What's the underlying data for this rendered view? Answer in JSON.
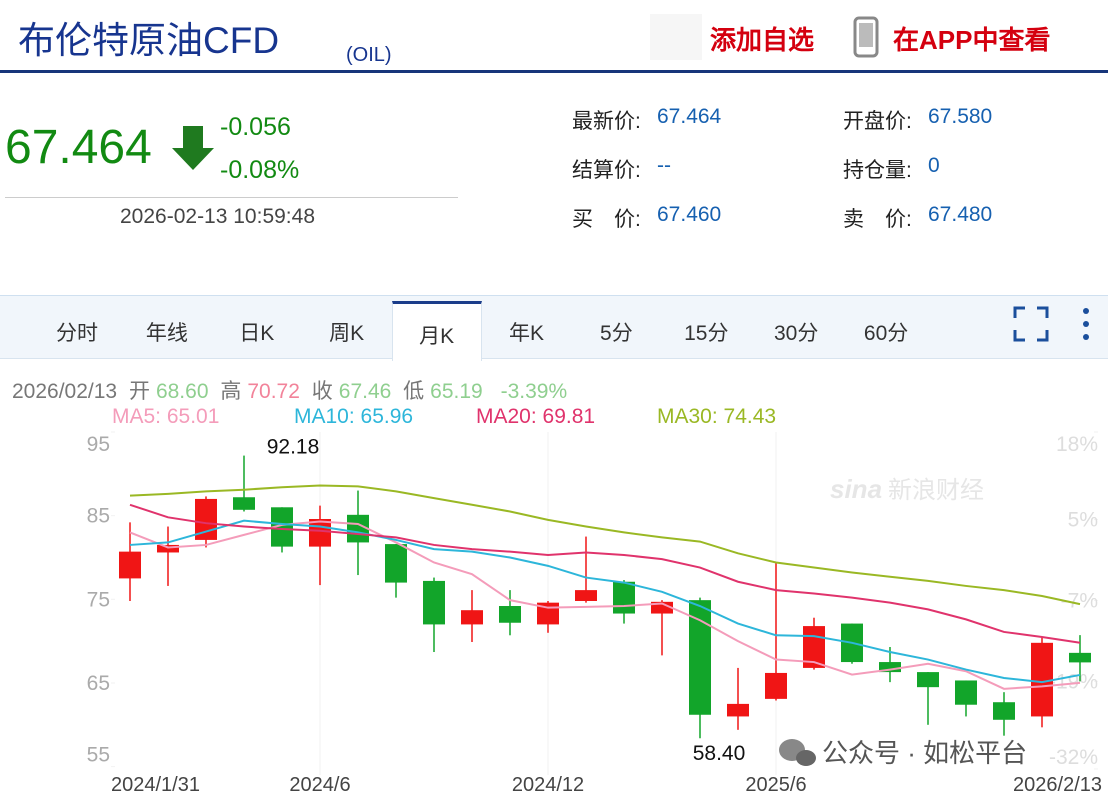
{
  "header": {
    "title": "布伦特原油CFD",
    "code": "(OIL)",
    "add_button": "添加自选",
    "app_button": "在APP中查看"
  },
  "quote": {
    "price": "67.464",
    "change": "-0.056",
    "change_pct": "-0.08%",
    "time": "2026-02-13 10:59:48",
    "fields": [
      {
        "label": "最新价:",
        "value": "67.464"
      },
      {
        "label": "开盘价:",
        "value": "67.580"
      },
      {
        "label": "结算价:",
        "value": "--"
      },
      {
        "label": "持仓量:",
        "value": "0"
      },
      {
        "label": "买　价:",
        "value": "67.460"
      },
      {
        "label": "卖　价:",
        "value": "67.480"
      }
    ]
  },
  "tabs": {
    "items": [
      "分时",
      "年线",
      "日K",
      "周K",
      "月K",
      "年K",
      "5分",
      "15分",
      "30分",
      "60分"
    ],
    "active": 4
  },
  "info": {
    "date": "2026/02/13",
    "items": [
      {
        "label": "开",
        "value": "68.60"
      },
      {
        "label": "高",
        "value": "70.72"
      },
      {
        "label": "收",
        "value": "67.46"
      },
      {
        "label": "低",
        "value": "65.19"
      },
      {
        "label": "",
        "value": "-3.39%"
      }
    ]
  },
  "watermarks": {
    "logo": "sina",
    "brand": "新浪财经",
    "wechat": "公众号 · 如松平台"
  },
  "chart_data": {
    "type": "candlestick",
    "categories": [
      "2024/1/31",
      null,
      null,
      null,
      null,
      "2024/6",
      null,
      null,
      null,
      null,
      null,
      "2024/12",
      null,
      null,
      null,
      null,
      null,
      "2025/6",
      null,
      null,
      null,
      null,
      null,
      null,
      null,
      "2026/2/13"
    ],
    "open": [
      77.5,
      80.6,
      82.1,
      87.2,
      86.0,
      81.3,
      85.1,
      81.6,
      77.2,
      72.0,
      74.2,
      72.0,
      74.8,
      77.1,
      73.3,
      74.9,
      61.0,
      63.1,
      66.8,
      72.1,
      67.5,
      66.3,
      65.3,
      62.7,
      61.0,
      68.6
    ],
    "high": [
      84.2,
      83.7,
      87.3,
      92.18,
      86.0,
      86.2,
      88.0,
      81.6,
      77.6,
      76.1,
      76.1,
      74.8,
      82.5,
      77.3,
      74.9,
      75.2,
      66.8,
      79.4,
      72.8,
      72.1,
      69.3,
      66.3,
      65.3,
      63.9,
      70.5,
      70.72
    ],
    "low": [
      74.8,
      76.6,
      81.2,
      85.5,
      80.6,
      76.7,
      77.9,
      75.2,
      68.7,
      69.9,
      70.7,
      71.0,
      74.6,
      72.1,
      68.3,
      58.4,
      59.4,
      62.9,
      66.6,
      67.3,
      65.1,
      60.0,
      61.0,
      58.7,
      59.7,
      65.19
    ],
    "close": [
      80.7,
      81.5,
      87.0,
      85.7,
      81.3,
      84.6,
      81.8,
      77.0,
      72.0,
      73.7,
      72.2,
      74.6,
      76.1,
      73.3,
      74.7,
      61.2,
      62.5,
      66.2,
      71.8,
      67.5,
      66.3,
      64.5,
      62.4,
      60.6,
      69.8,
      67.46
    ],
    "max_label": "92.18",
    "min_label": "58.40",
    "up_color": "#f01515",
    "down_color": "#12a52a",
    "series": [
      {
        "name": "MA5: 65.01",
        "color": "#f49cba",
        "values": [
          83.0,
          81.2,
          81.5,
          82.7,
          83.9,
          84.3,
          84.0,
          81.8,
          79.4,
          78.0,
          74.9,
          74.0,
          74.1,
          74.2,
          74.5,
          72.5,
          70.0,
          67.8,
          67.5,
          66.0,
          66.6,
          67.3,
          66.4,
          64.3,
          64.6,
          65.01
        ]
      },
      {
        "name": "MA10: 65.96",
        "color": "#2db6da",
        "values": [
          81.5,
          81.8,
          83.1,
          84.4,
          84.0,
          83.7,
          83.0,
          82.1,
          81.0,
          80.7,
          80.0,
          79.0,
          77.6,
          77.0,
          75.9,
          74.2,
          72.1,
          70.7,
          70.6,
          69.8,
          68.7,
          67.8,
          66.6,
          65.6,
          65.1,
          65.96
        ]
      },
      {
        "name": "MA20: 69.81",
        "color": "#e0336c",
        "values": [
          86.3,
          84.8,
          84.1,
          83.7,
          83.4,
          83.2,
          82.8,
          82.4,
          81.5,
          81.0,
          80.7,
          80.3,
          80.6,
          80.3,
          79.8,
          78.8,
          77.1,
          76.1,
          75.7,
          75.2,
          74.6,
          73.8,
          72.6,
          71.1,
          70.5,
          69.81
        ]
      },
      {
        "name": "MA30: 74.43",
        "color": "#9ab824",
        "values": [
          87.4,
          87.6,
          87.9,
          88.1,
          88.4,
          88.6,
          88.5,
          87.9,
          87.1,
          86.3,
          85.5,
          84.5,
          83.7,
          83.0,
          82.4,
          81.9,
          80.5,
          79.4,
          78.8,
          78.2,
          77.7,
          77.2,
          76.6,
          76.1,
          75.4,
          74.43
        ]
      }
    ],
    "ylim": [
      54,
      95
    ],
    "yticks": [
      55,
      65,
      75,
      85,
      95
    ],
    "y2lim": [
      -32.9,
      18.0
    ],
    "y2ticks": [
      {
        "value": -32,
        "label": "-32%"
      },
      {
        "value": -19,
        "label": "-19%"
      },
      {
        "value": -7,
        "label": "-7%"
      },
      {
        "value": 5,
        "label": "5%"
      },
      {
        "value": 18,
        "label": "18%"
      }
    ]
  }
}
